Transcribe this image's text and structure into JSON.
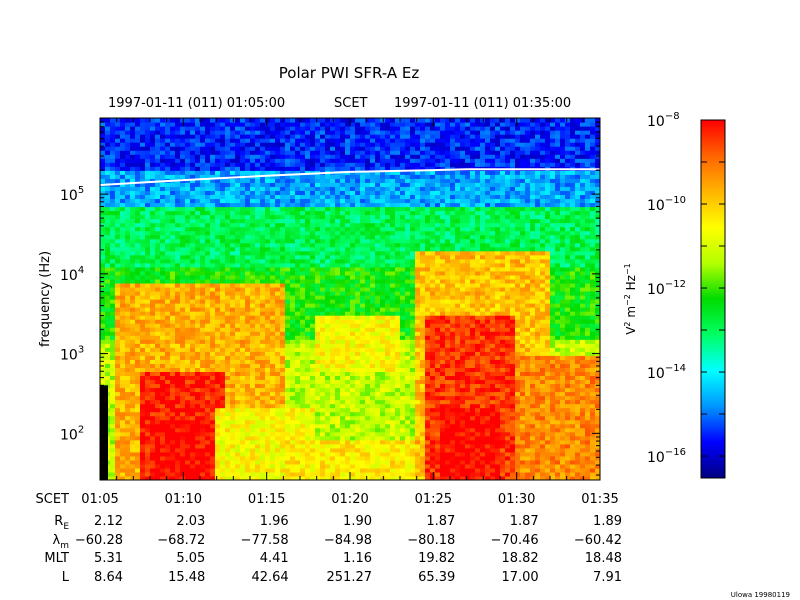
{
  "chart_data": {
    "type": "heatmap",
    "title": "Polar PWI SFR-A Ez",
    "time_header": {
      "start": "1997-01-11 (011) 01:05:00",
      "middle": "SCET",
      "end": "1997-01-11 (011) 01:35:00"
    },
    "ylabel": "frequency (Hz)",
    "y_scale": "log",
    "ylim": [
      26,
      900000
    ],
    "y_ticks": [
      {
        "value": 100,
        "base": "10",
        "exp": "2"
      },
      {
        "value": 1000,
        "base": "10",
        "exp": "3"
      },
      {
        "value": 10000,
        "base": "10",
        "exp": "4"
      },
      {
        "value": 100000,
        "base": "10",
        "exp": "5"
      }
    ],
    "colorbar": {
      "label_parts": [
        "V",
        "2",
        " m",
        "−2",
        " Hz",
        "−1"
      ],
      "scale": "log",
      "range": [
        3e-17,
        1e-08
      ],
      "ticks": [
        {
          "value": 1e-08,
          "base": "10",
          "exp": "−8"
        },
        {
          "value": 1e-10,
          "base": "10",
          "exp": "−10"
        },
        {
          "value": 1e-12,
          "base": "10",
          "exp": "−12"
        },
        {
          "value": 1e-14,
          "base": "10",
          "exp": "−14"
        },
        {
          "value": 1e-16,
          "base": "10",
          "exp": "−16"
        }
      ],
      "colors": [
        "#000080",
        "#0000ff",
        "#0096ff",
        "#00ffff",
        "#00ff64",
        "#00dc00",
        "#b4ff00",
        "#ffff00",
        "#ffb400",
        "#ff6400",
        "#ff0000"
      ]
    },
    "time_axis": {
      "row_labels": [
        {
          "name": "SCET"
        },
        {
          "name": "R",
          "sub": "E"
        },
        {
          "name": "λ",
          "sub": "m"
        },
        {
          "name": "MLT"
        },
        {
          "name": "L"
        }
      ],
      "columns": [
        {
          "SCET": "01:05",
          "RE": "2.12",
          "lambda_m": "−60.28",
          "MLT": "5.31",
          "L": "8.64"
        },
        {
          "SCET": "01:10",
          "RE": "2.03",
          "lambda_m": "−68.72",
          "MLT": "5.05",
          "L": "15.48"
        },
        {
          "SCET": "01:15",
          "RE": "1.96",
          "lambda_m": "−77.58",
          "MLT": "4.41",
          "L": "42.64"
        },
        {
          "SCET": "01:20",
          "RE": "1.90",
          "lambda_m": "−84.98",
          "MLT": "1.16",
          "L": "251.27"
        },
        {
          "SCET": "01:25",
          "RE": "1.87",
          "lambda_m": "−80.18",
          "MLT": "19.82",
          "L": "65.39"
        },
        {
          "SCET": "01:30",
          "RE": "1.87",
          "lambda_m": "−70.46",
          "MLT": "18.82",
          "L": "17.00"
        },
        {
          "SCET": "01:35",
          "RE": "1.89",
          "lambda_m": "−60.42",
          "MLT": "18.48",
          "L": "7.91"
        }
      ]
    },
    "white_line": {
      "description_note": "",
      "points": [
        [
          0,
          130000
        ],
        [
          5,
          150000
        ],
        [
          10,
          170000
        ],
        [
          15,
          190000
        ],
        [
          20,
          200000
        ],
        [
          22,
          205000
        ],
        [
          25,
          205000
        ],
        [
          30,
          205000
        ],
        [
          30,
          200000
        ]
      ]
    },
    "spectrogram_regions": [
      {
        "t": [
          0,
          30
        ],
        "f": [
          26,
          900000
        ],
        "level": 0.18
      },
      {
        "t": [
          0,
          30
        ],
        "f": [
          200000,
          900000
        ],
        "level": 0.12
      },
      {
        "t": [
          0,
          30
        ],
        "f": [
          70000,
          200000
        ],
        "level": 0.22
      },
      {
        "t": [
          0,
          30
        ],
        "f": [
          12000,
          70000
        ],
        "level": 0.42
      },
      {
        "t": [
          0,
          30
        ],
        "f": [
          1500,
          12000
        ],
        "level": 0.5
      },
      {
        "t": [
          0,
          30
        ],
        "f": [
          26,
          1500
        ],
        "level": 0.62
      },
      {
        "t": [
          1,
          11
        ],
        "f": [
          26,
          8000
        ],
        "level": 0.8
      },
      {
        "t": [
          2.5,
          7.5
        ],
        "f": [
          26,
          600
        ],
        "level": 0.97
      },
      {
        "t": [
          3,
          7
        ],
        "f": [
          26,
          150
        ],
        "level": 1.0
      },
      {
        "t": [
          19,
          27
        ],
        "f": [
          26,
          20000
        ],
        "level": 0.78
      },
      {
        "t": [
          19.5,
          25
        ],
        "f": [
          26,
          3000
        ],
        "level": 0.95
      },
      {
        "t": [
          20.5,
          24
        ],
        "f": [
          26,
          200
        ],
        "level": 1.0
      },
      {
        "t": [
          25,
          30
        ],
        "f": [
          26,
          1000
        ],
        "level": 0.85
      },
      {
        "t": [
          13,
          18
        ],
        "f": [
          600,
          3000
        ],
        "level": 0.7
      },
      {
        "t": [
          7,
          13
        ],
        "f": [
          26,
          200
        ],
        "level": 0.7
      },
      {
        "t": [
          11,
          19
        ],
        "f": [
          26,
          80
        ],
        "level": 0.72
      }
    ]
  },
  "footer_credit": "Ulowa 19980119"
}
